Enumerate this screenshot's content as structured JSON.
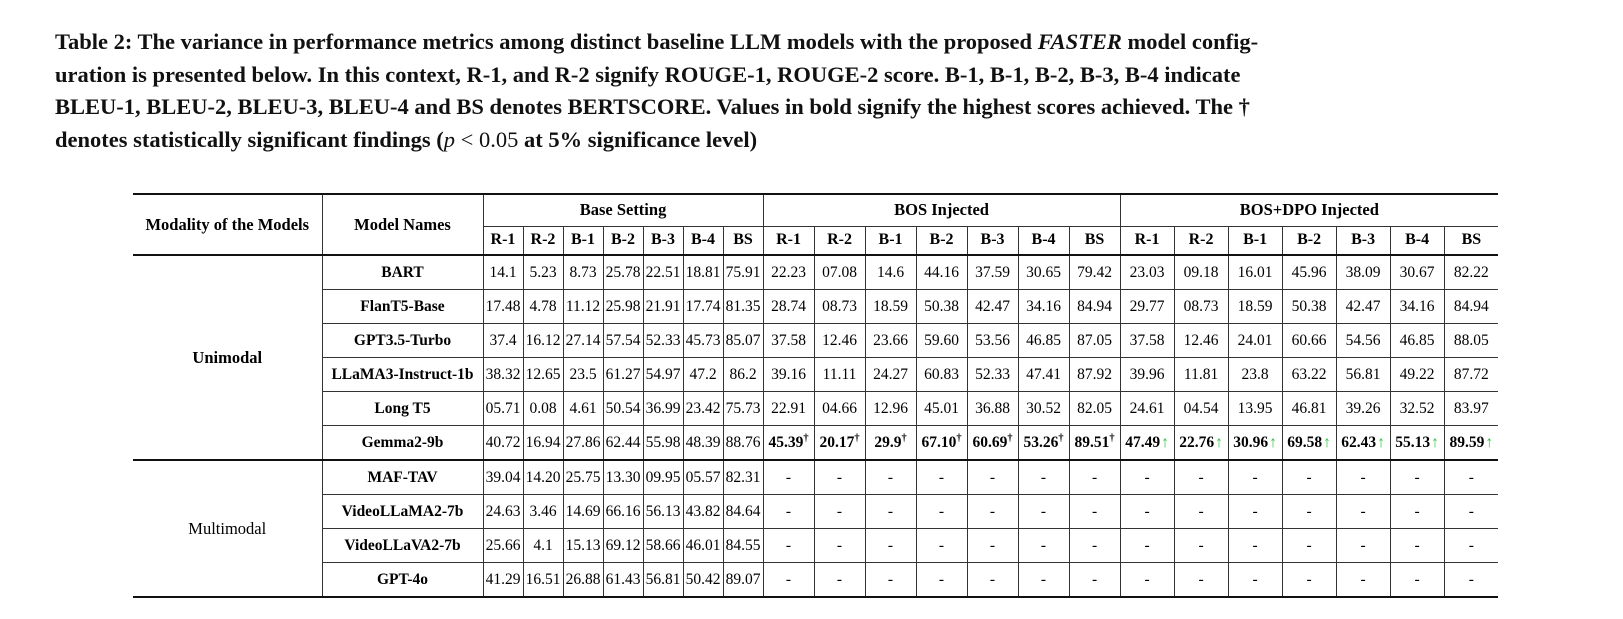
{
  "caption": {
    "line1_pre": "Table 2: The variance in performance metrics among distinct baseline LLM models with the proposed ",
    "line1_em": "FASTER",
    "line1_post": " model config-",
    "line2": "uration is presented below. In this context, R-1, and R-2 signify ROUGE-1, ROUGE-2 score. B-1, B-1, B-2, B-3, B-4 indicate",
    "line3": "BLEU-1, BLEU-2, BLEU-3, BLEU-4 and BS denotes BERTSCORE. Values in bold signify the highest scores achieved. The †",
    "line4_pre": "denotes statistically significant findings (",
    "line4_p": "p",
    "line4_math": " < 0.05",
    "line4_post": " at 5% significance level)"
  },
  "colors": {
    "arrow_green": "#2dc53c",
    "text": "#000000",
    "rule": "#333333"
  },
  "table": {
    "header": {
      "modality": "Modality of the Models",
      "model": "Model Names",
      "groups": [
        "Base Setting",
        "BOS Injected",
        "BOS+DPO Injected"
      ],
      "metrics": [
        "R-1",
        "R-2",
        "B-1",
        "B-2",
        "B-3",
        "B-4",
        "BS"
      ]
    },
    "sections": [
      {
        "modality": "Unimodal",
        "modality_bold": true,
        "rows": [
          {
            "model": "BART",
            "base": [
              "14.1",
              "5.23",
              "8.73",
              "25.78",
              "22.51",
              "18.81",
              "75.91"
            ],
            "bos": [
              "22.23",
              "07.08",
              "14.6",
              "44.16",
              "37.59",
              "30.65",
              "79.42"
            ],
            "bos_dpo": [
              "23.03",
              "09.18",
              "16.01",
              "45.96",
              "38.09",
              "30.67",
              "82.22"
            ]
          },
          {
            "model": "FlanT5-Base",
            "base": [
              "17.48",
              "4.78",
              "11.12",
              "25.98",
              "21.91",
              "17.74",
              "81.35"
            ],
            "bos": [
              "28.74",
              "08.73",
              "18.59",
              "50.38",
              "42.47",
              "34.16",
              "84.94"
            ],
            "bos_dpo": [
              "29.77",
              "08.73",
              "18.59",
              "50.38",
              "42.47",
              "34.16",
              "84.94"
            ]
          },
          {
            "model": "GPT3.5-Turbo",
            "base": [
              "37.4",
              "16.12",
              "27.14",
              "57.54",
              "52.33",
              "45.73",
              "85.07"
            ],
            "bos": [
              "37.58",
              "12.46",
              "23.66",
              "59.60",
              "53.56",
              "46.85",
              "87.05"
            ],
            "bos_dpo": [
              "37.58",
              "12.46",
              "24.01",
              "60.66",
              "54.56",
              "46.85",
              "88.05"
            ]
          },
          {
            "model": "LLaMA3-Instruct-1b",
            "base": [
              "38.32",
              "12.65",
              "23.5",
              "61.27",
              "54.97",
              "47.2",
              "86.2"
            ],
            "bos": [
              "39.16",
              "11.11",
              "24.27",
              "60.83",
              "52.33",
              "47.41",
              "87.92"
            ],
            "bos_dpo": [
              "39.96",
              "11.81",
              "23.8",
              "63.22",
              "56.81",
              "49.22",
              "87.72"
            ]
          },
          {
            "model": "Long T5",
            "base": [
              "05.71",
              "0.08",
              "4.61",
              "50.54",
              "36.99",
              "23.42",
              "75.73"
            ],
            "bos": [
              "22.91",
              "04.66",
              "12.96",
              "45.01",
              "36.88",
              "30.52",
              "82.05"
            ],
            "bos_dpo": [
              "24.61",
              "04.54",
              "13.95",
              "46.81",
              "39.26",
              "32.52",
              "83.97"
            ]
          },
          {
            "model": "Gemma2-9b",
            "base": [
              "40.72",
              "16.94",
              "27.86",
              "62.44",
              "55.98",
              "48.39",
              "88.76"
            ],
            "bos": [
              "45.39†",
              "20.17†",
              "29.9†",
              "67.10†",
              "60.69†",
              "53.26†",
              "89.51†"
            ],
            "bos_bold": true,
            "bos_dpo": [
              "47.49↑",
              "22.76↑",
              "30.96↑",
              "69.58↑",
              "62.43↑",
              "55.13↑",
              "89.59↑"
            ],
            "bos_dpo_bold": true
          }
        ]
      },
      {
        "modality": "Multimodal",
        "modality_bold": false,
        "rows": [
          {
            "model": "MAF-TAV",
            "base": [
              "39.04",
              "14.20",
              "25.75",
              "13.30",
              "09.95",
              "05.57",
              "82.31"
            ],
            "bos": [
              "-",
              "-",
              "-",
              "-",
              "-",
              "-",
              "-"
            ],
            "bos_dpo": [
              "-",
              "-",
              "-",
              "-",
              "-",
              "-",
              "-"
            ]
          },
          {
            "model": "VideoLLaMA2-7b",
            "base": [
              "24.63",
              "3.46",
              "14.69",
              "66.16",
              "56.13",
              "43.82",
              "84.64"
            ],
            "bos": [
              "-",
              "-",
              "-",
              "-",
              "-",
              "-",
              "-"
            ],
            "bos_dpo": [
              "-",
              "-",
              "-",
              "-",
              "-",
              "-",
              "-"
            ]
          },
          {
            "model": "VideoLLaVA2-7b",
            "base": [
              "25.66",
              "4.1",
              "15.13",
              "69.12",
              "58.66",
              "46.01",
              "84.55"
            ],
            "bos": [
              "-",
              "-",
              "-",
              "-",
              "-",
              "-",
              "-"
            ],
            "bos_dpo": [
              "-",
              "-",
              "-",
              "-",
              "-",
              "-",
              "-"
            ]
          },
          {
            "model": "GPT-4o",
            "base": [
              "41.29",
              "16.51",
              "26.88",
              "61.43",
              "56.81",
              "50.42",
              "89.07"
            ],
            "bos": [
              "-",
              "-",
              "-",
              "-",
              "-",
              "-",
              "-"
            ],
            "bos_dpo": [
              "-",
              "-",
              "-",
              "-",
              "-",
              "-",
              "-"
            ]
          }
        ]
      }
    ]
  }
}
